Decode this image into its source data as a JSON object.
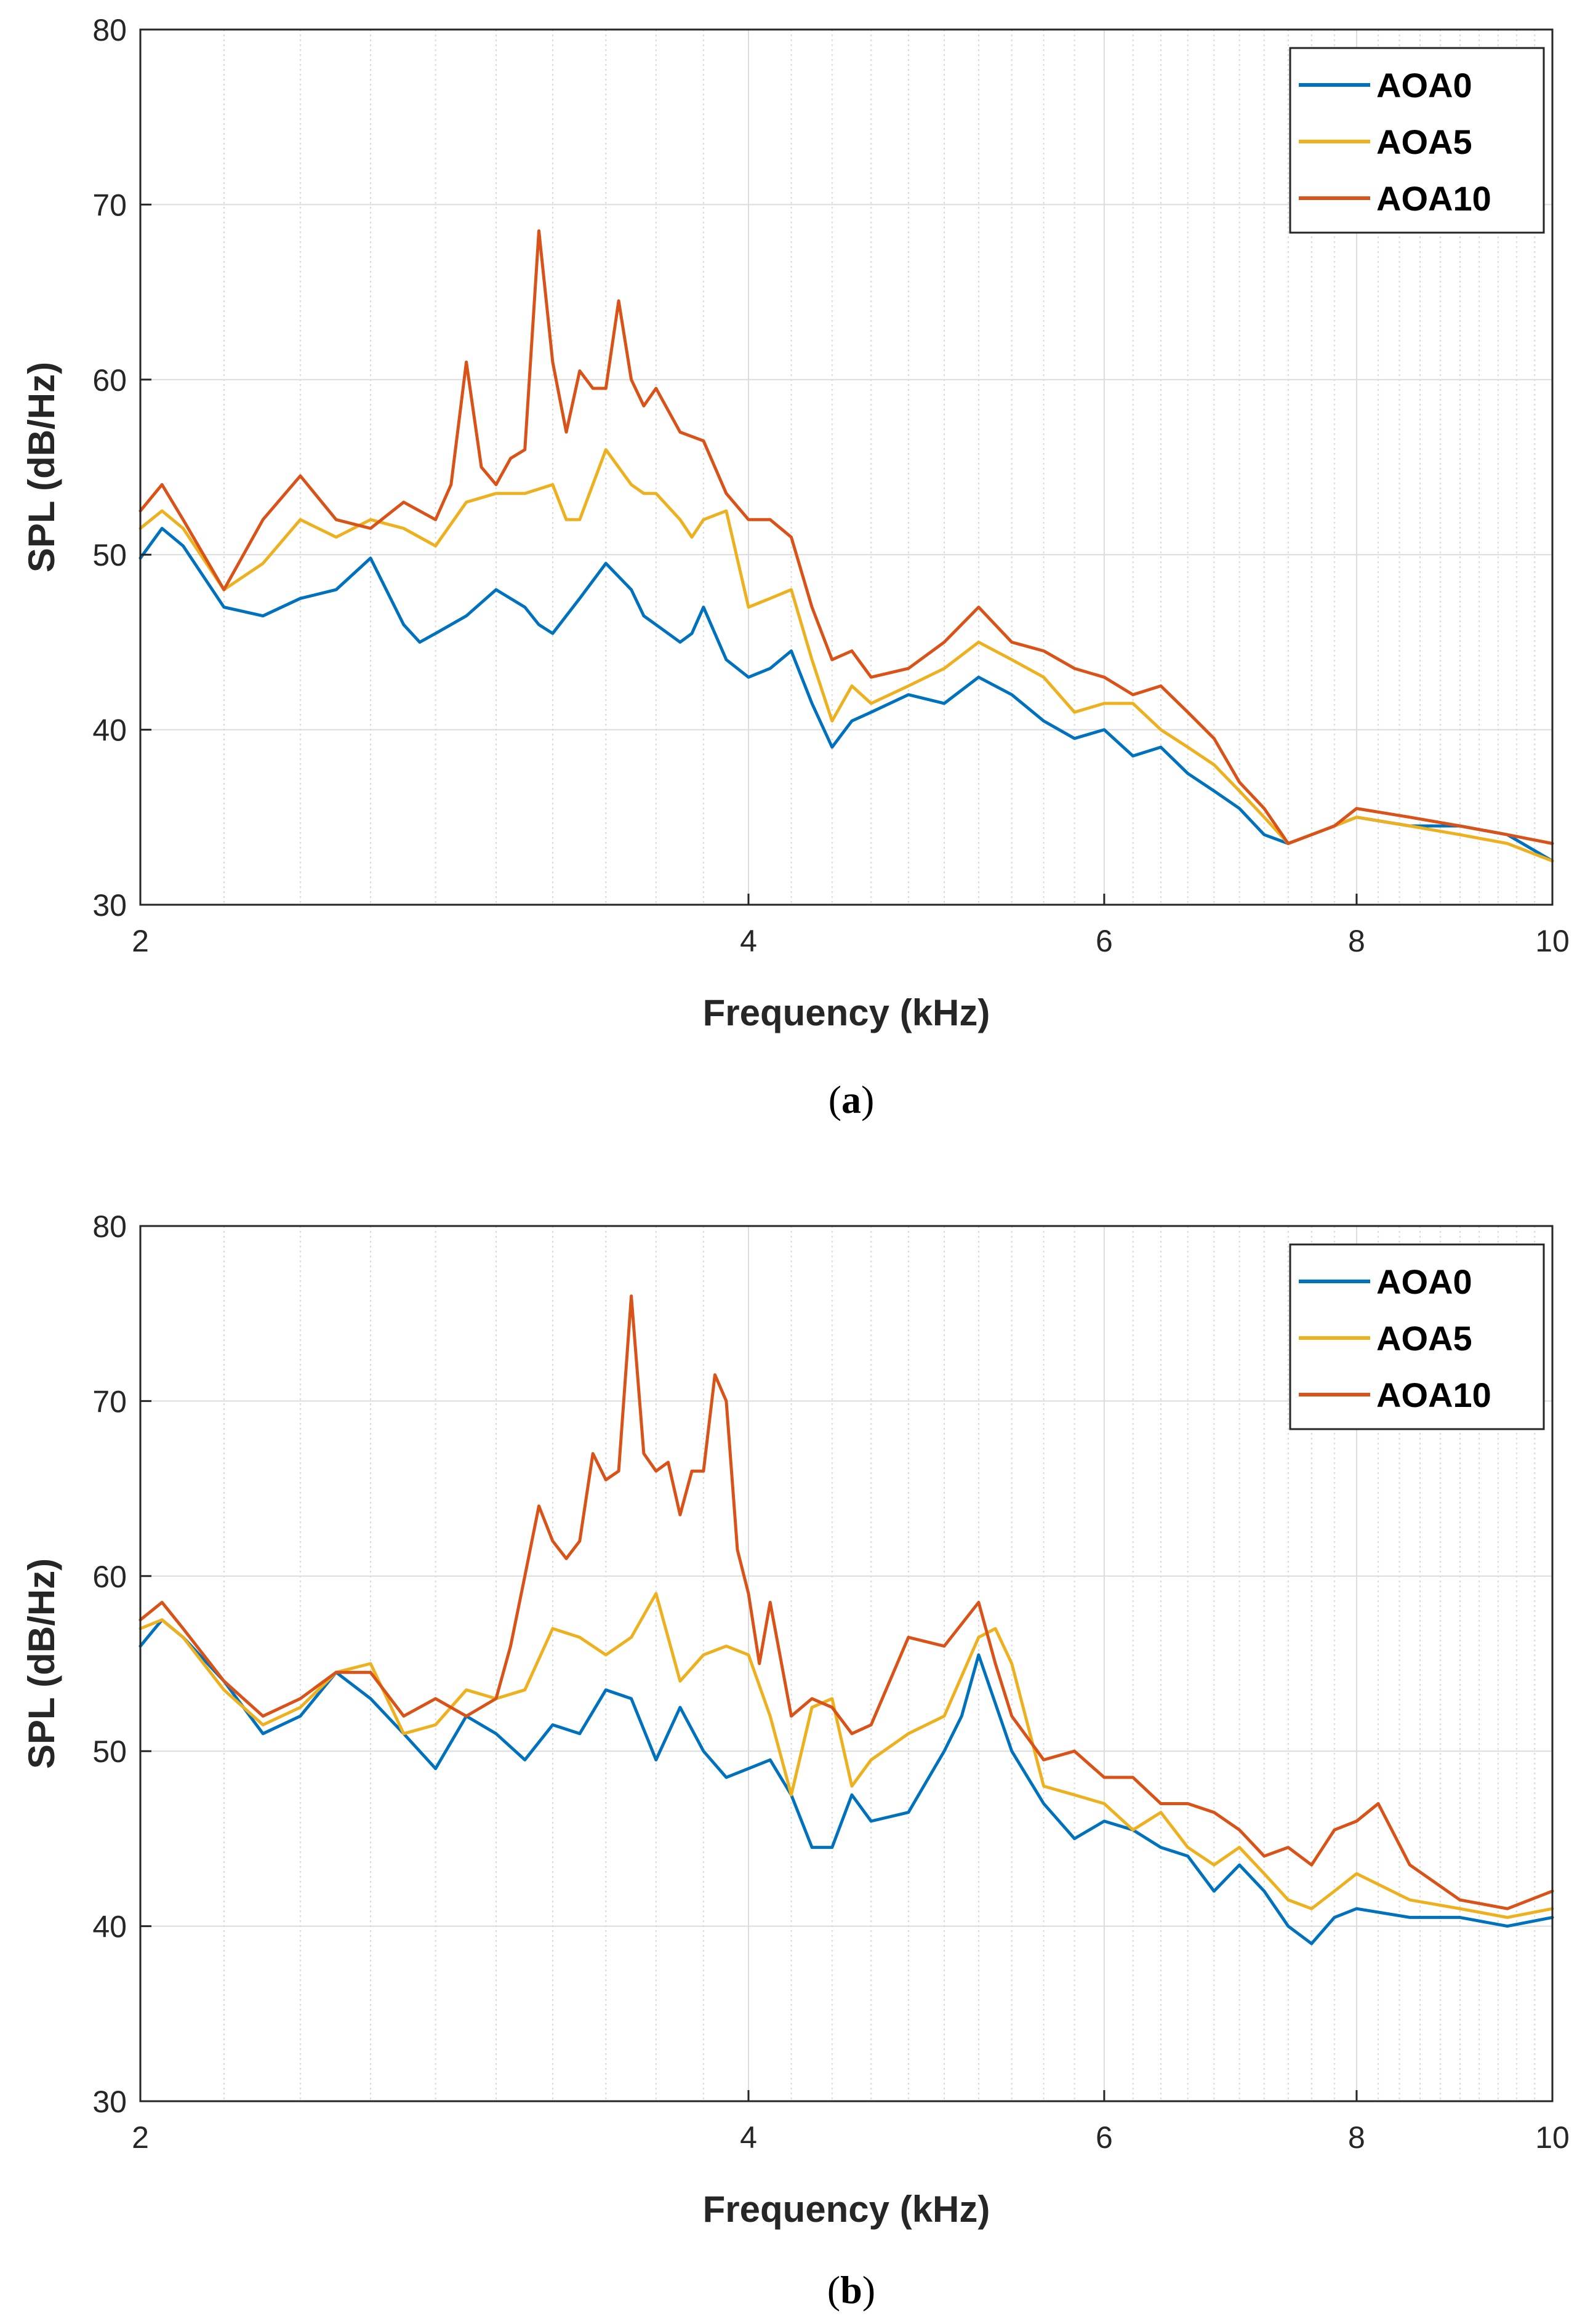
{
  "chart_data": [
    {
      "type": "line",
      "panel": "a",
      "caption_letter": "a",
      "xlabel": "Frequency (kHz)",
      "ylabel": "SPL (dB/Hz)",
      "xscale": "log",
      "xlim": [
        2,
        10
      ],
      "ylim": [
        30,
        80
      ],
      "xticks": [
        2,
        4,
        6,
        8,
        10
      ],
      "yticks": [
        30,
        40,
        50,
        60,
        70,
        80
      ],
      "grid": true,
      "legend_position": "top-right",
      "series": [
        {
          "name": "AOA0",
          "color": "#0072BD",
          "x": [
            2.0,
            2.05,
            2.1,
            2.2,
            2.3,
            2.4,
            2.5,
            2.6,
            2.7,
            2.75,
            2.8,
            2.9,
            3.0,
            3.1,
            3.15,
            3.2,
            3.3,
            3.4,
            3.5,
            3.55,
            3.6,
            3.7,
            3.75,
            3.8,
            3.9,
            4.0,
            4.1,
            4.2,
            4.3,
            4.4,
            4.5,
            4.6,
            4.8,
            5.0,
            5.2,
            5.4,
            5.6,
            5.8,
            6.0,
            6.2,
            6.4,
            6.6,
            6.8,
            7.0,
            7.2,
            7.4,
            7.6,
            7.8,
            8.0,
            8.5,
            9.0,
            9.5,
            10.0
          ],
          "y": [
            49.8,
            51.5,
            50.5,
            47.0,
            46.5,
            47.5,
            48.0,
            49.8,
            46.0,
            45.0,
            45.5,
            46.5,
            48.0,
            47.0,
            46.0,
            45.5,
            47.5,
            49.5,
            48.0,
            46.5,
            46.0,
            45.0,
            45.5,
            47.0,
            44.0,
            43.0,
            43.5,
            44.5,
            41.5,
            39.0,
            40.5,
            41.0,
            42.0,
            41.5,
            43.0,
            42.0,
            40.5,
            39.5,
            40.0,
            38.5,
            39.0,
            37.5,
            36.5,
            35.5,
            34.0,
            33.5,
            34.0,
            34.5,
            35.0,
            34.5,
            34.5,
            34.0,
            32.5
          ]
        },
        {
          "name": "AOA5",
          "color": "#EDB120",
          "x": [
            2.0,
            2.05,
            2.1,
            2.2,
            2.3,
            2.4,
            2.5,
            2.6,
            2.7,
            2.8,
            2.9,
            3.0,
            3.1,
            3.2,
            3.25,
            3.3,
            3.4,
            3.5,
            3.55,
            3.6,
            3.7,
            3.75,
            3.8,
            3.9,
            4.0,
            4.1,
            4.2,
            4.3,
            4.4,
            4.5,
            4.6,
            4.8,
            5.0,
            5.2,
            5.4,
            5.6,
            5.8,
            6.0,
            6.2,
            6.4,
            6.6,
            6.8,
            7.0,
            7.2,
            7.4,
            7.6,
            7.8,
            8.0,
            8.5,
            9.0,
            9.5,
            10.0
          ],
          "y": [
            51.5,
            52.5,
            51.5,
            48.0,
            49.5,
            52.0,
            51.0,
            52.0,
            51.5,
            50.5,
            53.0,
            53.5,
            53.5,
            54.0,
            52.0,
            52.0,
            56.0,
            54.0,
            53.5,
            53.5,
            52.0,
            51.0,
            52.0,
            52.5,
            47.0,
            47.5,
            48.0,
            44.0,
            40.5,
            42.5,
            41.5,
            42.5,
            43.5,
            45.0,
            44.0,
            43.0,
            41.0,
            41.5,
            41.5,
            40.0,
            39.0,
            38.0,
            36.5,
            35.0,
            33.5,
            34.0,
            34.5,
            35.0,
            34.5,
            34.0,
            33.5,
            32.5
          ]
        },
        {
          "name": "AOA10",
          "color": "#D95319",
          "x": [
            2.0,
            2.05,
            2.1,
            2.2,
            2.3,
            2.4,
            2.5,
            2.6,
            2.7,
            2.8,
            2.85,
            2.9,
            2.95,
            3.0,
            3.05,
            3.1,
            3.15,
            3.2,
            3.25,
            3.3,
            3.35,
            3.4,
            3.45,
            3.5,
            3.55,
            3.6,
            3.7,
            3.8,
            3.9,
            4.0,
            4.1,
            4.2,
            4.3,
            4.4,
            4.5,
            4.6,
            4.8,
            5.0,
            5.2,
            5.4,
            5.6,
            5.8,
            6.0,
            6.2,
            6.4,
            6.6,
            6.8,
            7.0,
            7.2,
            7.4,
            7.6,
            7.8,
            8.0,
            8.5,
            9.0,
            9.5,
            10.0
          ],
          "y": [
            52.5,
            54.0,
            52.0,
            48.0,
            52.0,
            54.5,
            52.0,
            51.5,
            53.0,
            52.0,
            54.0,
            61.0,
            55.0,
            54.0,
            55.5,
            56.0,
            68.5,
            61.0,
            57.0,
            60.5,
            59.5,
            59.5,
            64.5,
            60.0,
            58.5,
            59.5,
            57.0,
            56.5,
            53.5,
            52.0,
            52.0,
            51.0,
            47.0,
            44.0,
            44.5,
            43.0,
            43.5,
            45.0,
            47.0,
            45.0,
            44.5,
            43.5,
            43.0,
            42.0,
            42.5,
            41.0,
            39.5,
            37.0,
            35.5,
            33.5,
            34.0,
            34.5,
            35.5,
            35.0,
            34.5,
            34.0,
            33.5
          ]
        }
      ]
    },
    {
      "type": "line",
      "panel": "b",
      "caption_letter": "b",
      "xlabel": "Frequency (kHz)",
      "ylabel": "SPL (dB/Hz)",
      "xscale": "log",
      "xlim": [
        2,
        10
      ],
      "ylim": [
        30,
        80
      ],
      "xticks": [
        2,
        4,
        6,
        8,
        10
      ],
      "yticks": [
        30,
        40,
        50,
        60,
        70,
        80
      ],
      "grid": true,
      "legend_position": "top-right",
      "series": [
        {
          "name": "AOA0",
          "color": "#0072BD",
          "x": [
            2.0,
            2.05,
            2.1,
            2.2,
            2.3,
            2.4,
            2.5,
            2.6,
            2.7,
            2.8,
            2.9,
            3.0,
            3.1,
            3.2,
            3.3,
            3.4,
            3.5,
            3.6,
            3.7,
            3.8,
            3.9,
            4.0,
            4.1,
            4.2,
            4.3,
            4.4,
            4.5,
            4.6,
            4.8,
            5.0,
            5.1,
            5.2,
            5.4,
            5.6,
            5.8,
            6.0,
            6.2,
            6.4,
            6.6,
            6.8,
            7.0,
            7.2,
            7.4,
            7.6,
            7.8,
            8.0,
            8.5,
            9.0,
            9.5,
            10.0
          ],
          "y": [
            56.0,
            57.5,
            56.5,
            54.0,
            51.0,
            52.0,
            54.5,
            53.0,
            51.0,
            49.0,
            52.0,
            51.0,
            49.5,
            51.5,
            51.0,
            53.5,
            53.0,
            49.5,
            52.5,
            50.0,
            48.5,
            49.0,
            49.5,
            47.5,
            44.5,
            44.5,
            47.5,
            46.0,
            46.5,
            50.0,
            52.0,
            55.5,
            50.0,
            47.0,
            45.0,
            46.0,
            45.5,
            44.5,
            44.0,
            42.0,
            43.5,
            42.0,
            40.0,
            39.0,
            40.5,
            41.0,
            40.5,
            40.5,
            40.0,
            40.5
          ]
        },
        {
          "name": "AOA5",
          "color": "#EDB120",
          "x": [
            2.0,
            2.05,
            2.1,
            2.2,
            2.3,
            2.4,
            2.5,
            2.6,
            2.7,
            2.8,
            2.9,
            3.0,
            3.1,
            3.2,
            3.3,
            3.4,
            3.5,
            3.6,
            3.7,
            3.8,
            3.9,
            4.0,
            4.1,
            4.2,
            4.3,
            4.4,
            4.5,
            4.6,
            4.8,
            5.0,
            5.2,
            5.3,
            5.4,
            5.6,
            5.8,
            6.0,
            6.2,
            6.4,
            6.6,
            6.8,
            7.0,
            7.2,
            7.4,
            7.6,
            7.8,
            8.0,
            8.5,
            9.0,
            9.5,
            10.0
          ],
          "y": [
            57.0,
            57.5,
            56.5,
            53.5,
            51.5,
            52.5,
            54.5,
            55.0,
            51.0,
            51.5,
            53.5,
            53.0,
            53.5,
            57.0,
            56.5,
            55.5,
            56.5,
            59.0,
            54.0,
            55.5,
            56.0,
            55.5,
            52.0,
            47.5,
            52.5,
            53.0,
            48.0,
            49.5,
            51.0,
            52.0,
            56.5,
            57.0,
            55.0,
            48.0,
            47.5,
            47.0,
            45.5,
            46.5,
            44.5,
            43.5,
            44.5,
            43.0,
            41.5,
            41.0,
            42.0,
            43.0,
            41.5,
            41.0,
            40.5,
            41.0
          ]
        },
        {
          "name": "AOA10",
          "color": "#D95319",
          "x": [
            2.0,
            2.05,
            2.1,
            2.2,
            2.3,
            2.4,
            2.5,
            2.6,
            2.7,
            2.8,
            2.9,
            3.0,
            3.05,
            3.1,
            3.15,
            3.2,
            3.25,
            3.3,
            3.35,
            3.4,
            3.45,
            3.5,
            3.55,
            3.6,
            3.65,
            3.7,
            3.75,
            3.8,
            3.85,
            3.9,
            3.95,
            4.0,
            4.05,
            4.1,
            4.2,
            4.3,
            4.4,
            4.5,
            4.6,
            4.8,
            5.0,
            5.2,
            5.3,
            5.4,
            5.6,
            5.8,
            6.0,
            6.2,
            6.4,
            6.6,
            6.8,
            7.0,
            7.2,
            7.4,
            7.6,
            7.8,
            8.0,
            8.2,
            8.5,
            9.0,
            9.5,
            10.0
          ],
          "y": [
            57.5,
            58.5,
            57.0,
            54.0,
            52.0,
            53.0,
            54.5,
            54.5,
            52.0,
            53.0,
            52.0,
            53.0,
            56.0,
            60.0,
            64.0,
            62.0,
            61.0,
            62.0,
            67.0,
            65.5,
            66.0,
            76.0,
            67.0,
            66.0,
            66.5,
            63.5,
            66.0,
            66.0,
            71.5,
            70.0,
            61.5,
            59.0,
            55.0,
            58.5,
            52.0,
            53.0,
            52.5,
            51.0,
            51.5,
            56.5,
            56.0,
            58.5,
            55.0,
            52.0,
            49.5,
            50.0,
            48.5,
            48.5,
            47.0,
            47.0,
            46.5,
            45.5,
            44.0,
            44.5,
            43.5,
            45.5,
            46.0,
            47.0,
            43.5,
            41.5,
            41.0,
            42.0
          ]
        }
      ]
    }
  ]
}
